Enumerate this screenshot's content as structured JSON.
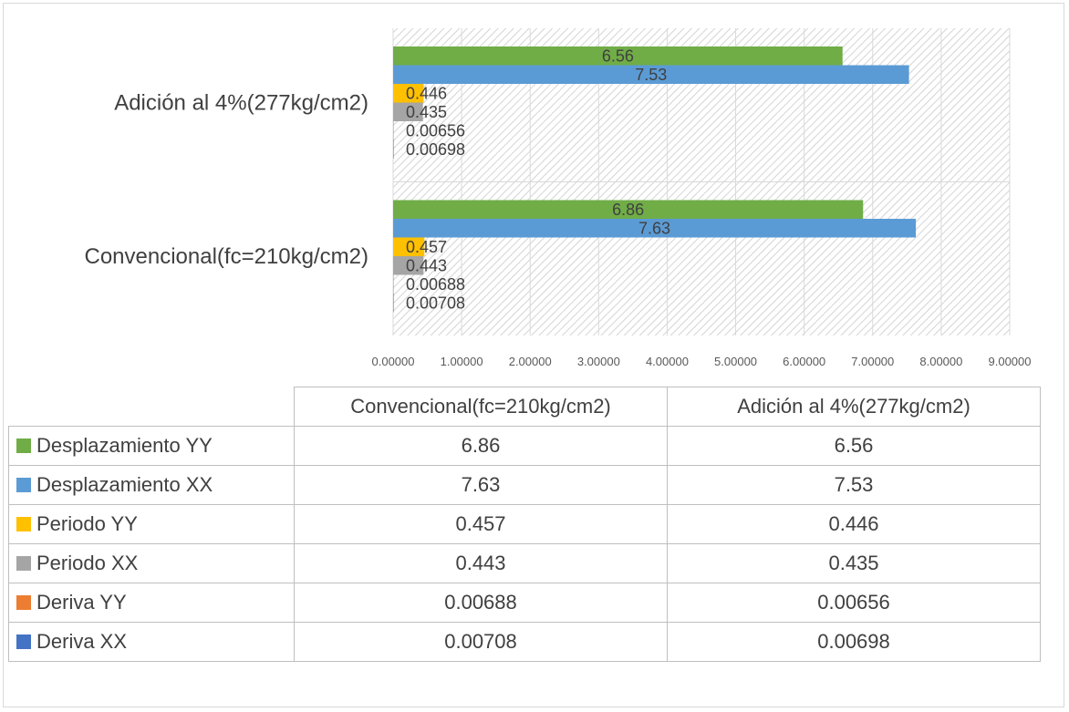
{
  "chart_data": {
    "type": "bar",
    "orientation": "horizontal",
    "categories": [
      "Convencional(fc=210kg/cm2)",
      "Adición al 4%(277kg/cm2)"
    ],
    "series": [
      {
        "name": "Desplazamiento YY",
        "color": "#70ad47",
        "values": [
          6.86,
          6.56
        ],
        "labels": [
          "6.86",
          "6.56"
        ]
      },
      {
        "name": "Desplazamiento XX",
        "color": "#5b9bd5",
        "values": [
          7.63,
          7.53
        ],
        "labels": [
          "7.63",
          "7.53"
        ]
      },
      {
        "name": "Periodo YY",
        "color": "#ffc000",
        "values": [
          0.457,
          0.446
        ],
        "labels": [
          "0.457",
          "0.446"
        ]
      },
      {
        "name": "Periodo XX",
        "color": "#a5a5a5",
        "values": [
          0.443,
          0.435
        ],
        "labels": [
          "0.443",
          "0.435"
        ]
      },
      {
        "name": "Deriva YY",
        "color": "#ed7d31",
        "values": [
          0.00688,
          0.00656
        ],
        "labels": [
          "0.00688",
          "0.00656"
        ]
      },
      {
        "name": "Deriva XX",
        "color": "#4472c4",
        "values": [
          0.00708,
          0.00698
        ],
        "labels": [
          "0.00708",
          "0.00698"
        ]
      }
    ],
    "xlim": [
      0,
      9
    ],
    "x_ticks": [
      "0.00000",
      "1.00000",
      "2.00000",
      "3.00000",
      "4.00000",
      "5.00000",
      "6.00000",
      "7.00000",
      "8.00000",
      "9.00000"
    ],
    "grid": true,
    "plot_background": "hatched",
    "legend": "data-table-below"
  }
}
